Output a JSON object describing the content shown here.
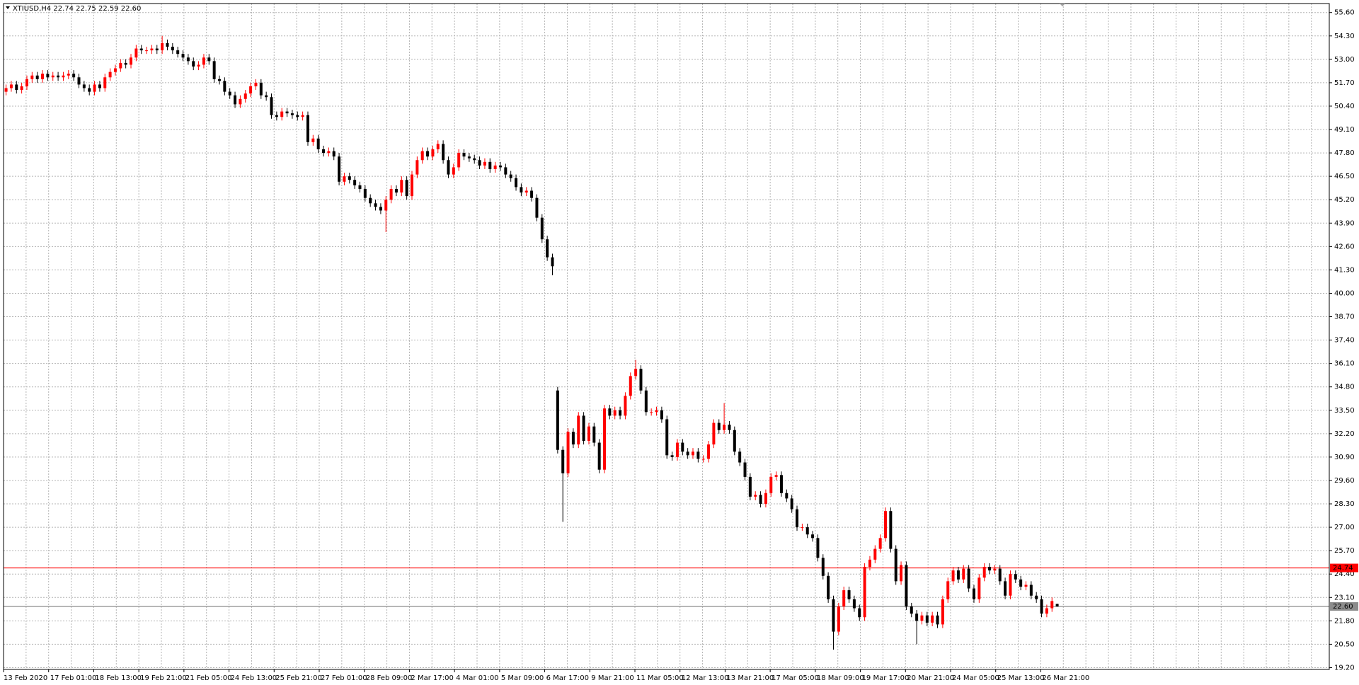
{
  "chart_data": {
    "type": "candlestick",
    "title": "XTIUSD,H4  22.74 22.75 22.59 22.60",
    "x_labels": [
      "13 Feb 2020",
      "17 Feb 01:00",
      "18 Feb 13:00",
      "19 Feb 21:00",
      "21 Feb 05:00",
      "24 Feb 13:00",
      "25 Feb 21:00",
      "27 Feb 01:00",
      "28 Feb 09:00",
      "2 Mar 17:00",
      "4 Mar 01:00",
      "5 Mar 09:00",
      "6 Mar 17:00",
      "9 Mar 21:00",
      "11 Mar 05:00",
      "12 Mar 13:00",
      "13 Mar 21:00",
      "17 Mar 05:00",
      "18 Mar 09:00",
      "19 Mar 17:00",
      "20 Mar 21:00",
      "24 Mar 05:00",
      "25 Mar 13:00",
      "26 Mar 21:00"
    ],
    "open": [
      51.2,
      51.4,
      51.6,
      51.3,
      51.5,
      51.9,
      52.1,
      51.9,
      52.2,
      52.0,
      52.1,
      52.0,
      52.1,
      52.2,
      52.0,
      51.6,
      51.4,
      51.2,
      51.6,
      51.4,
      52.0,
      52.3,
      52.5,
      52.8,
      52.7,
      53.1,
      53.6,
      53.5,
      53.5,
      53.6,
      53.5,
      53.9,
      53.7,
      53.5,
      53.3,
      53.1,
      52.9,
      52.6,
      52.7,
      53.1,
      52.9,
      51.9,
      51.8,
      51.2,
      51.0,
      50.5,
      50.8,
      51.1,
      51.5,
      51.7,
      51.0,
      50.9,
      49.9,
      49.8,
      50.1,
      50.0,
      49.9,
      49.8,
      49.9,
      48.4,
      48.6,
      48.0,
      47.8,
      47.9,
      47.6,
      46.2,
      46.5,
      46.3,
      46.0,
      45.8,
      45.3,
      45.0,
      44.8,
      44.6,
      45.2,
      45.8,
      45.6,
      46.3,
      45.4,
      46.6,
      47.4,
      47.9,
      47.6,
      48.0,
      48.3,
      47.4,
      46.6,
      47.0,
      47.8,
      47.6,
      47.5,
      47.4,
      47.1,
      47.3,
      46.9,
      47.1,
      47.0,
      46.6,
      46.4,
      45.9,
      45.6,
      45.7,
      45.3,
      44.2,
      43.0,
      42.0,
      34.6,
      31.3,
      30.0,
      32.3,
      31.6,
      33.2,
      31.8,
      32.6,
      31.7,
      30.2,
      33.6,
      33.2,
      33.5,
      33.2,
      34.3,
      35.4,
      35.8,
      34.6,
      33.4,
      33.4,
      33.5,
      33.0,
      31.0,
      30.9,
      31.7,
      31.2,
      31.0,
      31.2,
      30.8,
      30.8,
      31.6,
      32.8,
      32.4,
      32.7,
      32.4,
      31.2,
      30.6,
      29.8,
      28.7,
      28.8,
      28.3,
      28.9,
      29.8,
      29.9,
      28.9,
      28.6,
      28.0,
      27.0,
      27.0,
      26.6,
      26.4,
      25.3,
      24.3,
      23.0,
      21.2,
      22.6,
      23.5,
      23.0,
      22.5,
      22.0,
      24.8,
      25.2,
      25.8,
      26.4,
      27.9,
      25.8,
      24.0,
      24.9,
      22.6,
      22.2,
      21.8,
      22.1,
      21.7,
      22.1,
      21.6,
      23.0,
      24.0,
      24.6,
      24.1,
      24.7,
      23.6,
      23.0,
      24.2,
      24.8,
      24.6,
      24.7,
      24.0,
      23.2,
      24.4,
      24.1,
      23.7,
      23.8,
      23.2,
      23.0,
      22.2,
      22.5,
      22.74
    ],
    "high": [
      51.6,
      51.8,
      51.8,
      51.7,
      52.1,
      52.3,
      52.3,
      52.4,
      52.4,
      52.3,
      52.3,
      52.3,
      52.4,
      52.4,
      52.2,
      51.8,
      51.6,
      51.8,
      51.8,
      52.2,
      52.5,
      52.7,
      53.0,
      53.0,
      53.3,
      53.8,
      53.8,
      53.7,
      53.8,
      53.8,
      54.3,
      54.1,
      53.9,
      53.7,
      53.5,
      53.3,
      53.1,
      52.9,
      53.3,
      53.3,
      53.1,
      52.1,
      52.0,
      51.4,
      51.2,
      51.0,
      51.3,
      51.7,
      51.9,
      51.9,
      51.2,
      51.1,
      50.1,
      50.3,
      50.3,
      50.2,
      50.1,
      50.1,
      50.1,
      48.8,
      48.8,
      48.2,
      48.1,
      48.1,
      47.8,
      46.7,
      46.7,
      46.5,
      46.2,
      46.0,
      45.5,
      45.2,
      45.0,
      45.4,
      46.0,
      46.0,
      46.5,
      46.5,
      46.8,
      47.6,
      48.1,
      48.1,
      48.2,
      48.5,
      48.5,
      47.6,
      47.2,
      48.0,
      48.0,
      47.8,
      47.7,
      47.6,
      47.5,
      47.5,
      47.3,
      47.3,
      47.2,
      46.8,
      46.6,
      46.1,
      45.9,
      45.9,
      45.5,
      44.4,
      43.2,
      42.2,
      34.8,
      31.5,
      32.5,
      32.5,
      33.4,
      33.4,
      32.8,
      32.8,
      31.9,
      33.8,
      33.8,
      33.7,
      33.7,
      34.5,
      35.6,
      36.3,
      36.0,
      34.8,
      33.6,
      33.7,
      33.7,
      33.2,
      31.2,
      31.9,
      31.9,
      31.4,
      31.4,
      31.4,
      31.0,
      31.8,
      33.0,
      33.0,
      33.9,
      32.9,
      32.6,
      31.4,
      30.8,
      30.0,
      29.0,
      29.0,
      29.1,
      30.0,
      30.1,
      30.1,
      29.1,
      28.8,
      28.2,
      27.2,
      27.2,
      26.8,
      26.6,
      25.5,
      24.5,
      23.2,
      22.8,
      23.7,
      23.7,
      23.2,
      22.7,
      25.0,
      25.4,
      26.0,
      26.6,
      28.1,
      28.1,
      26.0,
      25.1,
      25.1,
      22.8,
      22.4,
      22.3,
      22.3,
      22.3,
      22.3,
      23.2,
      24.2,
      24.8,
      24.8,
      24.9,
      24.9,
      23.8,
      24.4,
      25.0,
      25.0,
      24.9,
      24.9,
      24.2,
      24.6,
      24.6,
      24.3,
      24.0,
      24.0,
      23.4,
      23.2,
      22.7,
      23.1,
      22.75
    ],
    "low": [
      51.0,
      51.2,
      51.1,
      51.1,
      51.3,
      51.7,
      51.7,
      51.7,
      51.8,
      51.8,
      51.8,
      51.8,
      51.9,
      51.8,
      51.4,
      51.2,
      51.0,
      51.0,
      51.2,
      51.2,
      51.8,
      52.1,
      52.3,
      52.5,
      52.5,
      52.9,
      53.3,
      53.3,
      53.3,
      53.3,
      53.3,
      53.5,
      53.3,
      53.1,
      52.9,
      52.7,
      52.4,
      52.4,
      52.5,
      52.7,
      51.7,
      51.6,
      51.0,
      50.8,
      50.3,
      50.3,
      50.6,
      50.9,
      51.3,
      50.8,
      50.7,
      49.7,
      49.6,
      49.6,
      49.8,
      49.7,
      49.6,
      49.6,
      48.2,
      48.2,
      47.8,
      47.6,
      47.6,
      47.4,
      46.0,
      46.0,
      46.1,
      45.8,
      45.6,
      45.1,
      44.8,
      44.6,
      44.4,
      43.4,
      45.0,
      45.4,
      45.4,
      45.2,
      45.2,
      46.4,
      47.2,
      47.4,
      47.4,
      47.8,
      47.2,
      46.4,
      46.4,
      46.8,
      47.4,
      47.3,
      47.2,
      46.9,
      46.9,
      46.7,
      46.7,
      46.8,
      46.4,
      46.2,
      45.7,
      45.4,
      45.4,
      45.1,
      44.0,
      42.8,
      41.8,
      41.0,
      31.1,
      27.3,
      29.8,
      31.4,
      31.4,
      31.6,
      31.6,
      31.5,
      30.0,
      30.0,
      33.0,
      33.0,
      33.0,
      33.0,
      34.1,
      35.2,
      34.4,
      33.2,
      33.2,
      33.2,
      32.8,
      30.8,
      30.7,
      30.7,
      31.0,
      30.8,
      30.8,
      30.6,
      30.6,
      30.6,
      31.4,
      32.2,
      32.2,
      32.2,
      31.0,
      30.4,
      29.6,
      28.5,
      28.5,
      28.1,
      28.1,
      28.7,
      29.6,
      28.7,
      28.4,
      27.8,
      26.8,
      26.8,
      26.4,
      26.2,
      25.1,
      24.1,
      22.8,
      20.2,
      21.0,
      22.4,
      22.8,
      22.3,
      21.8,
      21.8,
      24.6,
      25.0,
      25.6,
      26.2,
      25.6,
      23.8,
      23.8,
      22.4,
      22.0,
      20.5,
      21.6,
      21.5,
      21.5,
      21.4,
      21.4,
      22.8,
      23.8,
      23.9,
      23.9,
      23.4,
      22.8,
      22.8,
      24.0,
      24.4,
      24.4,
      23.8,
      23.0,
      23.0,
      23.9,
      23.5,
      23.5,
      23.0,
      22.8,
      22.0,
      22.0,
      22.3,
      22.59
    ],
    "close": [
      51.4,
      51.6,
      51.3,
      51.5,
      51.9,
      52.1,
      51.9,
      52.2,
      52.0,
      52.1,
      52.0,
      52.1,
      52.2,
      52.0,
      51.6,
      51.4,
      51.2,
      51.6,
      51.4,
      52.0,
      52.3,
      52.5,
      52.8,
      52.7,
      53.1,
      53.6,
      53.5,
      53.5,
      53.6,
      53.5,
      53.9,
      53.7,
      53.5,
      53.3,
      53.1,
      52.9,
      52.6,
      52.7,
      53.1,
      52.9,
      51.9,
      51.8,
      51.2,
      51.0,
      50.5,
      50.8,
      51.1,
      51.5,
      51.7,
      51.0,
      50.9,
      49.9,
      49.8,
      50.1,
      50.0,
      49.9,
      49.8,
      49.9,
      48.4,
      48.6,
      48.0,
      47.8,
      47.9,
      47.6,
      46.2,
      46.5,
      46.3,
      46.0,
      45.8,
      45.3,
      45.0,
      44.8,
      44.6,
      45.2,
      45.8,
      45.6,
      46.3,
      45.4,
      46.6,
      47.4,
      47.9,
      47.6,
      48.0,
      48.3,
      47.4,
      46.6,
      47.0,
      47.8,
      47.6,
      47.5,
      47.4,
      47.1,
      47.3,
      46.9,
      47.1,
      47.0,
      46.6,
      46.4,
      45.9,
      45.6,
      45.7,
      45.3,
      44.2,
      43.0,
      42.0,
      41.5,
      31.3,
      30.0,
      32.3,
      31.6,
      33.2,
      31.8,
      32.6,
      31.7,
      30.2,
      33.6,
      33.2,
      33.5,
      33.2,
      34.3,
      35.4,
      35.8,
      34.6,
      33.4,
      33.4,
      33.5,
      33.0,
      31.0,
      30.9,
      31.7,
      31.2,
      31.0,
      31.2,
      30.8,
      30.8,
      31.6,
      32.8,
      32.4,
      32.7,
      32.4,
      31.2,
      30.6,
      29.8,
      28.7,
      28.8,
      28.3,
      28.9,
      29.8,
      29.9,
      28.9,
      28.6,
      28.0,
      27.0,
      27.0,
      26.6,
      26.4,
      25.3,
      24.3,
      23.0,
      21.2,
      22.6,
      23.5,
      23.0,
      22.5,
      22.0,
      24.8,
      25.2,
      25.8,
      26.4,
      27.9,
      25.8,
      24.0,
      24.9,
      22.6,
      22.2,
      21.8,
      22.1,
      21.7,
      22.1,
      21.6,
      23.0,
      24.0,
      24.6,
      24.1,
      24.7,
      23.6,
      23.0,
      24.2,
      24.8,
      24.6,
      24.7,
      24.0,
      23.2,
      24.4,
      24.1,
      23.7,
      23.8,
      23.2,
      23.0,
      22.2,
      22.5,
      22.9,
      22.6
    ],
    "up_color": "#ff0000",
    "down_color": "#000000",
    "ylim": [
      19.1,
      56.1
    ],
    "yticks": [
      {
        "value": 19.2,
        "label": "19.20"
      },
      {
        "value": 20.5,
        "label": "20.50"
      },
      {
        "value": 21.8,
        "label": "21.80"
      },
      {
        "value": 23.1,
        "label": "23.10"
      },
      {
        "value": 24.4,
        "label": "24.40"
      },
      {
        "value": 25.7,
        "label": "25.70"
      },
      {
        "value": 27,
        "label": "27.00"
      },
      {
        "value": 28.3,
        "label": "28.30"
      },
      {
        "value": 29.6,
        "label": "29.60"
      },
      {
        "value": 30.9,
        "label": "30.90"
      },
      {
        "value": 32.2,
        "label": "32.20"
      },
      {
        "value": 33.5,
        "label": "33.50"
      },
      {
        "value": 34.8,
        "label": "34.80"
      },
      {
        "value": 36.1,
        "label": "36.10"
      },
      {
        "value": 37.4,
        "label": "37.40"
      },
      {
        "value": 38.7,
        "label": "38.70"
      },
      {
        "value": 40,
        "label": "40.00"
      },
      {
        "value": 41.3,
        "label": "41.30"
      },
      {
        "value": 42.6,
        "label": "42.60"
      },
      {
        "value": 43.9,
        "label": "43.90"
      },
      {
        "value": 45.2,
        "label": "45.20"
      },
      {
        "value": 46.5,
        "label": "46.50"
      },
      {
        "value": 47.8,
        "label": "47.80"
      },
      {
        "value": 49.1,
        "label": "49.10"
      },
      {
        "value": 50.4,
        "label": "50.40"
      },
      {
        "value": 51.7,
        "label": "51.70"
      },
      {
        "value": 53,
        "label": "53.00"
      },
      {
        "value": 54.3,
        "label": "54.30"
      },
      {
        "value": 55.6,
        "label": "55.60"
      }
    ],
    "grid": true,
    "lines": [
      {
        "value": 24.74,
        "label": "24.74",
        "color": "#ff0000"
      },
      {
        "value": 22.6,
        "label": "22.60",
        "color": "#8c8c8c"
      }
    ]
  }
}
